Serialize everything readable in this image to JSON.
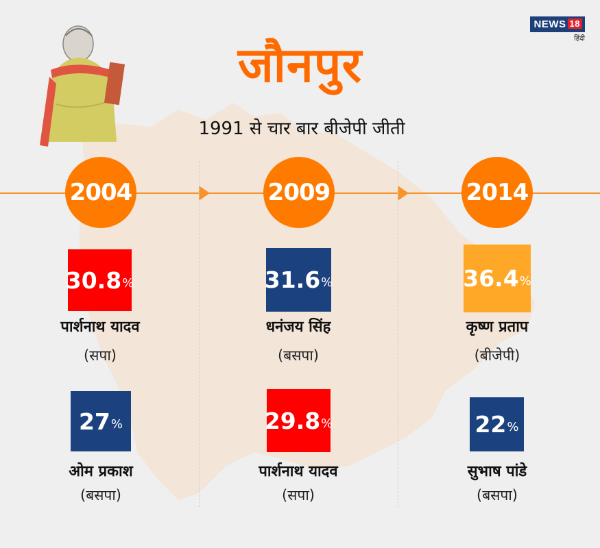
{
  "title": "जौनपुर",
  "subtitle": "1991 से चार बार बीजेपी जीती",
  "logo": {
    "brand": "NEWS",
    "number": "18",
    "sub": "हिंदी"
  },
  "years": [
    {
      "year": "2004",
      "candidates": [
        {
          "percent": "30.8",
          "name": "पार्शनाथ यादव",
          "party": "(सपा)",
          "color": "#ff0000"
        },
        {
          "percent": "27",
          "name": "ओम प्रकाश",
          "party": "(बसपा)",
          "color": "#1b417f"
        }
      ]
    },
    {
      "year": "2009",
      "candidates": [
        {
          "percent": "31.6",
          "name": "धनंजय सिंह",
          "party": "(बसपा)",
          "color": "#1b417f"
        },
        {
          "percent": "29.8",
          "name": "पार्शनाथ यादव",
          "party": "(सपा)",
          "color": "#ff0000"
        }
      ]
    },
    {
      "year": "2014",
      "candidates": [
        {
          "percent": "36.4",
          "name": "कृष्ण प्रताप",
          "party": "(बीजेपी)",
          "color": "#ffa726"
        },
        {
          "percent": "22",
          "name": "सुभाष पांडे",
          "party": "(बसपा)",
          "color": "#1b417f"
        }
      ]
    }
  ],
  "percent_sign": "%"
}
